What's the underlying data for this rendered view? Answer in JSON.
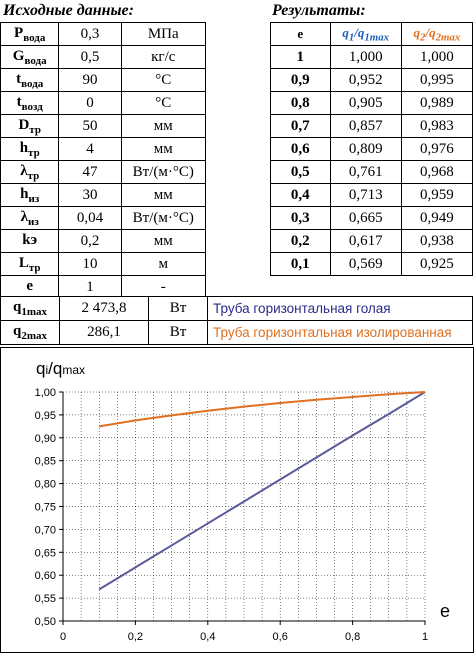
{
  "input": {
    "title": "Исходные данные:",
    "rows": [
      {
        "sym": "P",
        "sub": "вода",
        "val": "0,3",
        "unit": "МПа"
      },
      {
        "sym": "G",
        "sub": "вода",
        "val": "0,5",
        "unit": "кг/с"
      },
      {
        "sym": "t",
        "sub": "вода",
        "val": "90",
        "unit": "°C"
      },
      {
        "sym": "t",
        "sub": "возд",
        "val": "0",
        "unit": "°C"
      },
      {
        "sym": "D",
        "sub": "тр",
        "val": "50",
        "unit": "мм"
      },
      {
        "sym": "h",
        "sub": "тр",
        "val": "4",
        "unit": "мм"
      },
      {
        "sym": "λ",
        "sub": "тр",
        "val": "47",
        "unit": "Вт/(м·°C)"
      },
      {
        "sym": "h",
        "sub": "из",
        "val": "30",
        "unit": "мм"
      },
      {
        "sym": "λ",
        "sub": "из",
        "val": "0,04",
        "unit": "Вт/(м·°C)"
      },
      {
        "sym": "kэ",
        "sub": "",
        "val": "0,2",
        "unit": "мм"
      },
      {
        "sym": "L",
        "sub": "тр",
        "val": "10",
        "unit": "м"
      },
      {
        "sym": "e",
        "sub": "",
        "val": "1",
        "unit": "-"
      }
    ]
  },
  "results": {
    "title": "Результаты:",
    "col_e": "e",
    "col_q1": {
      "sym": "q",
      "sub1": "1",
      "slash": "/q",
      "sub2": "1max",
      "color": "#1f5fbf"
    },
    "col_q2": {
      "sym": "q",
      "sub1": "2",
      "slash": "/q",
      "sub2": "2max",
      "color": "#e07020"
    },
    "rows": [
      {
        "e": "1",
        "q1": "1,000",
        "q2": "1,000"
      },
      {
        "e": "0,9",
        "q1": "0,952",
        "q2": "0,995"
      },
      {
        "e": "0,8",
        "q1": "0,905",
        "q2": "0,989"
      },
      {
        "e": "0,7",
        "q1": "0,857",
        "q2": "0,983"
      },
      {
        "e": "0,6",
        "q1": "0,809",
        "q2": "0,976"
      },
      {
        "e": "0,5",
        "q1": "0,761",
        "q2": "0,968"
      },
      {
        "e": "0,4",
        "q1": "0,713",
        "q2": "0,959"
      },
      {
        "e": "0,3",
        "q1": "0,665",
        "q2": "0,949"
      },
      {
        "e": "0,2",
        "q1": "0,617",
        "q2": "0,938"
      },
      {
        "e": "0,1",
        "q1": "0,569",
        "q2": "0,925"
      }
    ]
  },
  "summary": [
    {
      "sym": "q",
      "sub": "1max",
      "val": "2 473,8",
      "unit": "Вт",
      "desc": "Труба горизонтальная голая",
      "color": "#2b2b8c"
    },
    {
      "sym": "q",
      "sub": "2max",
      "val": "286,1",
      "unit": "Вт",
      "desc": "Труба горизонтальная изолированная",
      "color": "#e07020"
    }
  ],
  "chart_data": {
    "type": "line",
    "ylabel_main": "q",
    "ylabel_sub1": "i",
    "ylabel_mid": "/q",
    "ylabel_sub2": "max",
    "xlabel": "e",
    "xlim": [
      0,
      1
    ],
    "ylim": [
      0.5,
      1.0
    ],
    "xticks": [
      "0",
      "0,2",
      "0,4",
      "0,6",
      "0,8",
      "1"
    ],
    "yticks": [
      "0,50",
      "0,55",
      "0,60",
      "0,65",
      "0,70",
      "0,75",
      "0,80",
      "0,85",
      "0,90",
      "0,95",
      "1,00"
    ],
    "grid": true,
    "x": [
      0.1,
      0.2,
      0.3,
      0.4,
      0.5,
      0.6,
      0.7,
      0.8,
      0.9,
      1.0
    ],
    "series": [
      {
        "key": "q1",
        "color": "#5a5a9a",
        "values": [
          0.569,
          0.617,
          0.665,
          0.713,
          0.761,
          0.809,
          0.857,
          0.905,
          0.952,
          1.0
        ]
      },
      {
        "key": "q2",
        "color": "#e07020",
        "values": [
          0.925,
          0.938,
          0.949,
          0.959,
          0.968,
          0.976,
          0.983,
          0.989,
          0.995,
          1.0
        ]
      }
    ]
  }
}
